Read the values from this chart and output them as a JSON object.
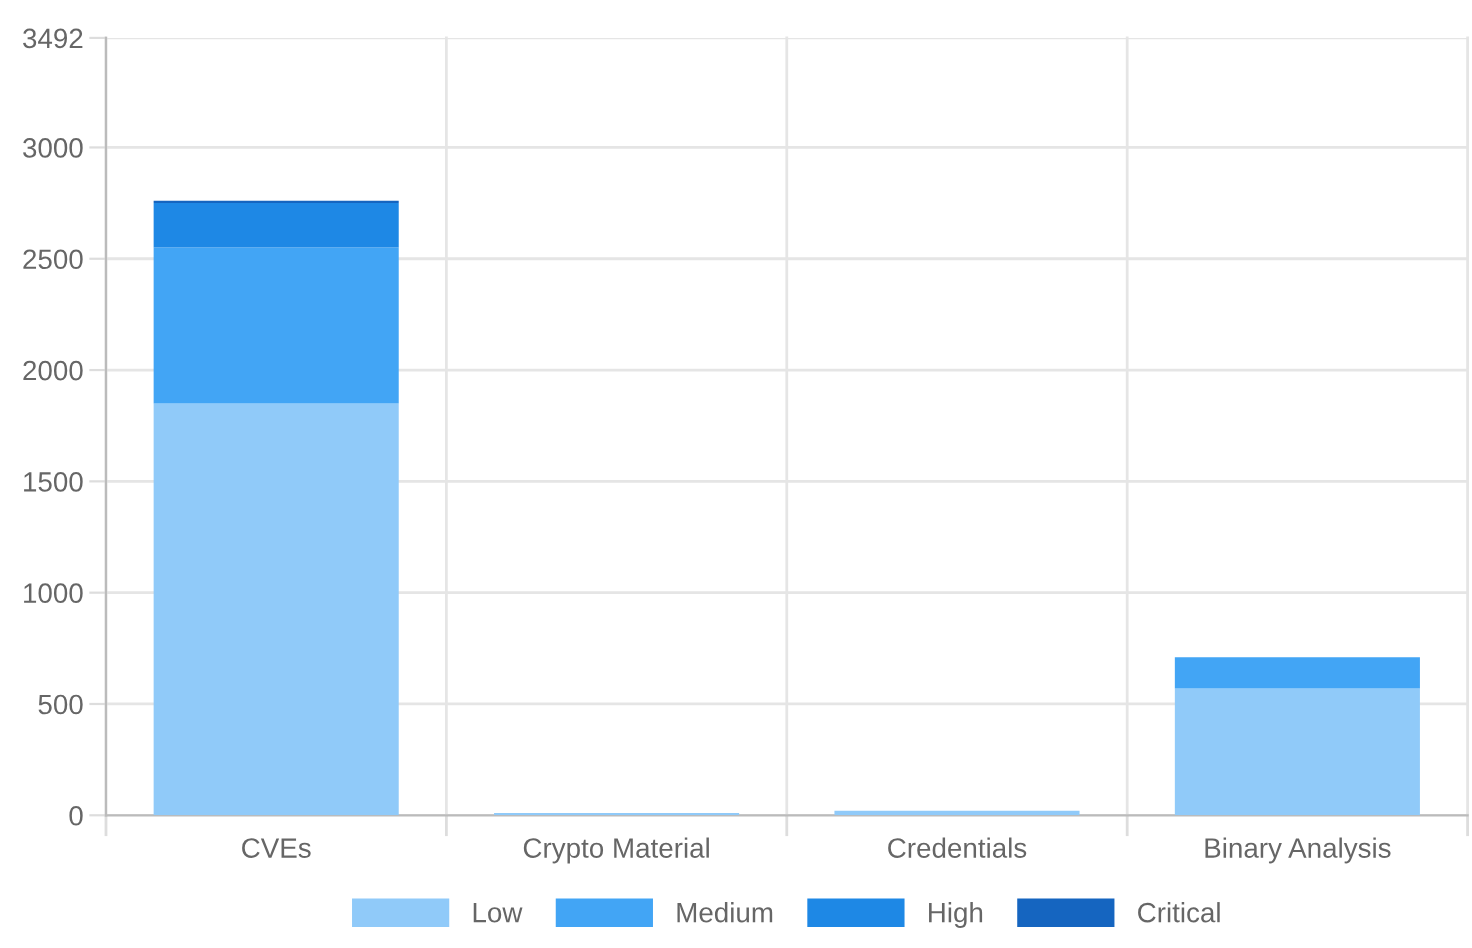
{
  "chart_data": {
    "type": "bar",
    "stacked": true,
    "categories": [
      "CVEs",
      "Crypto Material",
      "Credentials",
      "Binary Analysis"
    ],
    "series": [
      {
        "name": "Low",
        "color": "#90caf9",
        "values": [
          1850,
          10,
          20,
          570
        ]
      },
      {
        "name": "Medium",
        "color": "#42a5f5",
        "values": [
          700,
          0,
          0,
          140
        ]
      },
      {
        "name": "High",
        "color": "#1e88e5",
        "values": [
          200,
          0,
          0,
          0
        ]
      },
      {
        "name": "Critical",
        "color": "#1565c0",
        "values": [
          10,
          0,
          0,
          0
        ]
      }
    ],
    "ylim": [
      0,
      3492
    ],
    "yticks": [
      0,
      500,
      1000,
      1500,
      2000,
      2500,
      3000,
      3492
    ],
    "grid": true,
    "legend": "bottom"
  }
}
